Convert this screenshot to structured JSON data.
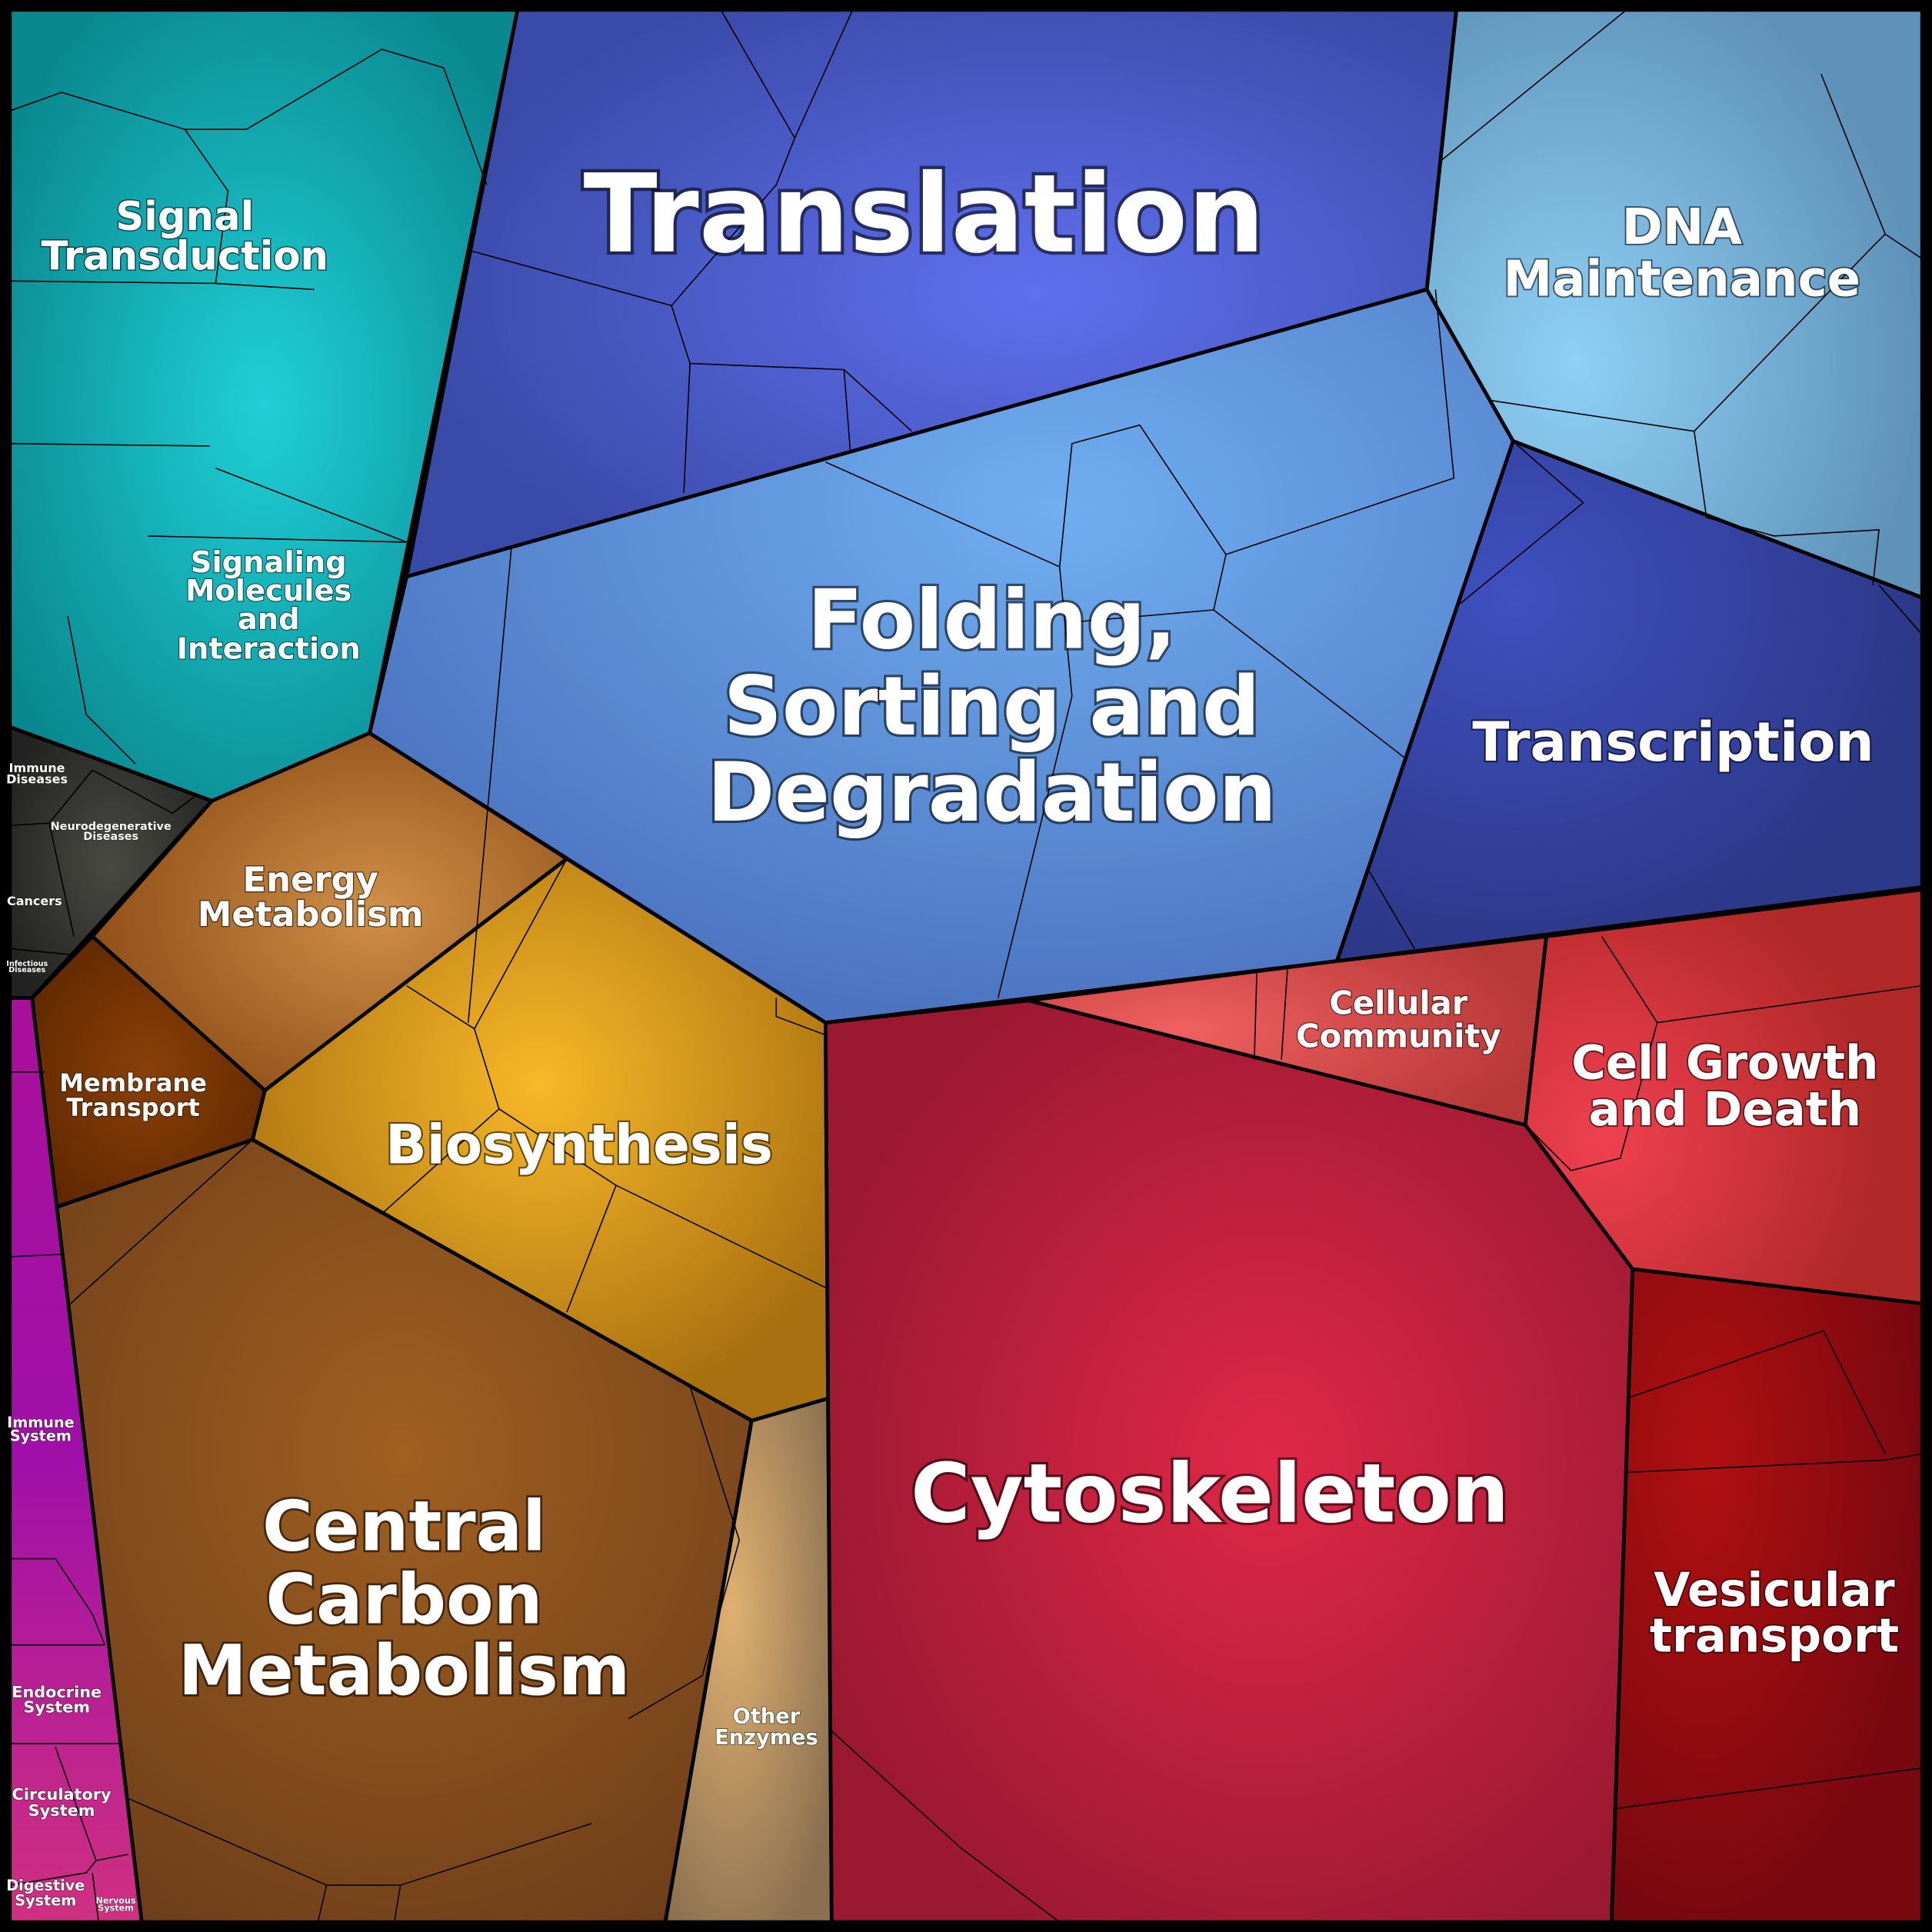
{
  "nodes": [
    {
      "lines": [
        "Translation"
      ]
    },
    {
      "lines": [
        "DNA",
        "Maintenance"
      ]
    },
    {
      "lines": [
        "Folding,",
        "Sorting and",
        "Degradation"
      ]
    },
    {
      "lines": [
        "Transcription"
      ]
    },
    {
      "lines": [
        "Signal",
        "Transduction"
      ]
    },
    {
      "lines": [
        "Signaling",
        "Molecules",
        "and",
        "Interaction"
      ]
    },
    {
      "lines": [
        "Immune",
        "Diseases"
      ]
    },
    {
      "lines": [
        "Neurodegenerative",
        "Diseases"
      ]
    },
    {
      "lines": [
        "Cancers"
      ]
    },
    {
      "lines": [
        "Infectious",
        "Diseases"
      ]
    },
    {
      "lines": [
        "Energy",
        "Metabolism"
      ]
    },
    {
      "lines": [
        "Membrane",
        "Transport"
      ]
    },
    {
      "lines": [
        "Biosynthesis"
      ]
    },
    {
      "lines": [
        "Central",
        "Carbon",
        "Metabolism"
      ]
    },
    {
      "lines": [
        "Other",
        "Enzymes"
      ]
    },
    {
      "lines": [
        "Cytoskeleton"
      ]
    },
    {
      "lines": [
        "Cellular",
        "Community"
      ]
    },
    {
      "lines": [
        "Cell Growth",
        "and Death"
      ]
    },
    {
      "lines": [
        "Vesicular",
        "transport"
      ]
    },
    {
      "lines": [
        "Immune",
        "System"
      ]
    },
    {
      "lines": [
        "Endocrine",
        "System"
      ]
    },
    {
      "lines": [
        "Circulatory",
        "System"
      ]
    },
    {
      "lines": [
        "Digestive",
        "System"
      ]
    },
    {
      "lines": [
        "Nervous",
        "System"
      ]
    }
  ]
}
